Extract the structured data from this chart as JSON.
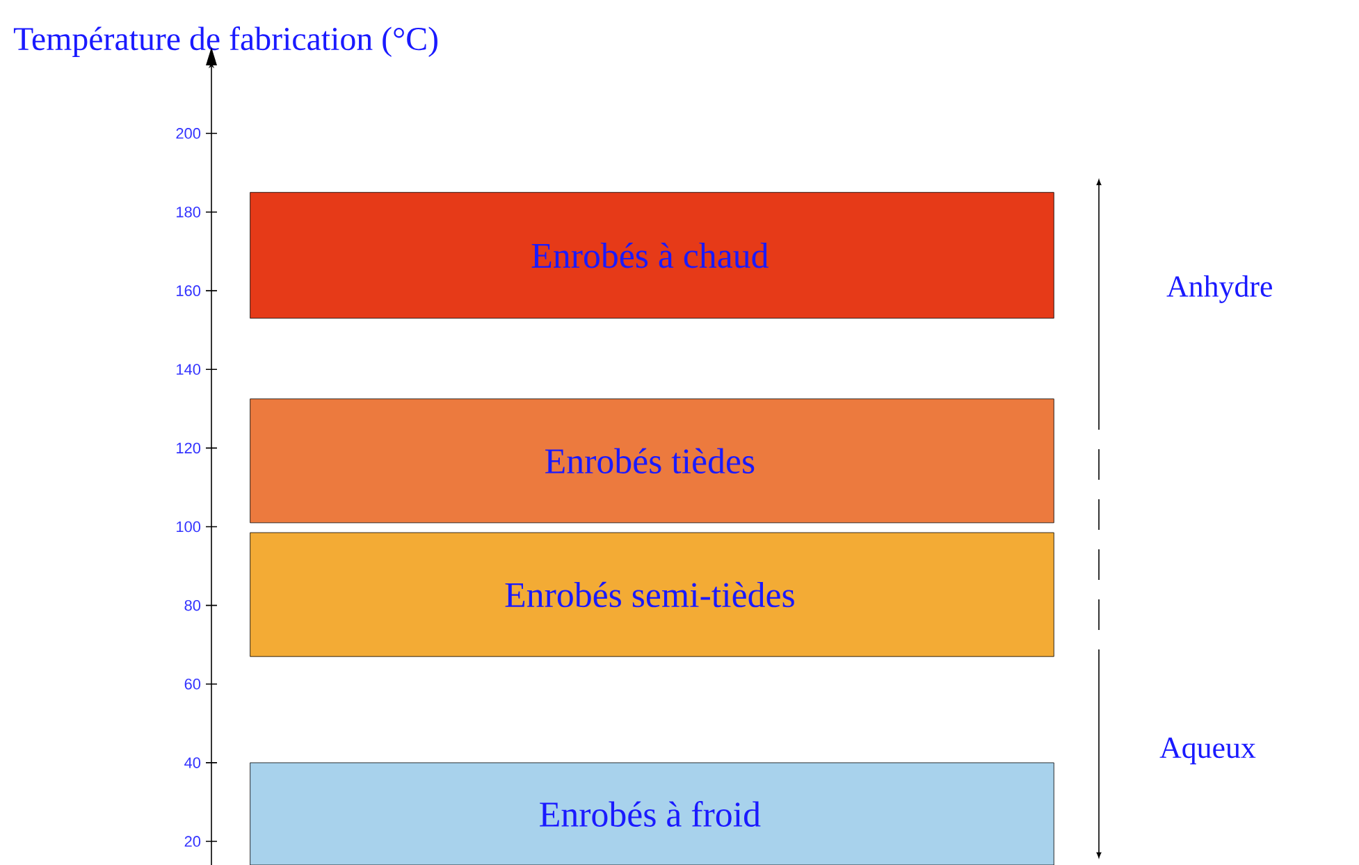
{
  "chart_data": {
    "type": "bar",
    "ylabel": "Température de fabrication (°C)",
    "categories": [
      null
    ],
    "series": [
      {
        "name": "Enrobés à chaud",
        "color": "#e63a18",
        "base": [
          153
        ],
        "values": [
          32
        ]
      },
      {
        "name": "Enrobés tièdes",
        "color": "#ec7a3e",
        "base": [
          101
        ],
        "values": [
          31.5
        ]
      },
      {
        "name": "Enrobés semi-tièdes",
        "color": "#f3ab35",
        "base": [
          67
        ],
        "values": [
          31.5
        ]
      },
      {
        "name": "Enrobés à froid",
        "color": "#a8d2ec",
        "base": [
          14
        ],
        "values": [
          26
        ]
      }
    ],
    "ylim": [
      14,
      218
    ],
    "yticks": [
      20,
      40,
      60,
      80,
      100,
      120,
      140,
      160,
      180,
      200
    ],
    "annotations": [
      "Anhydre",
      "Aqueux"
    ]
  }
}
